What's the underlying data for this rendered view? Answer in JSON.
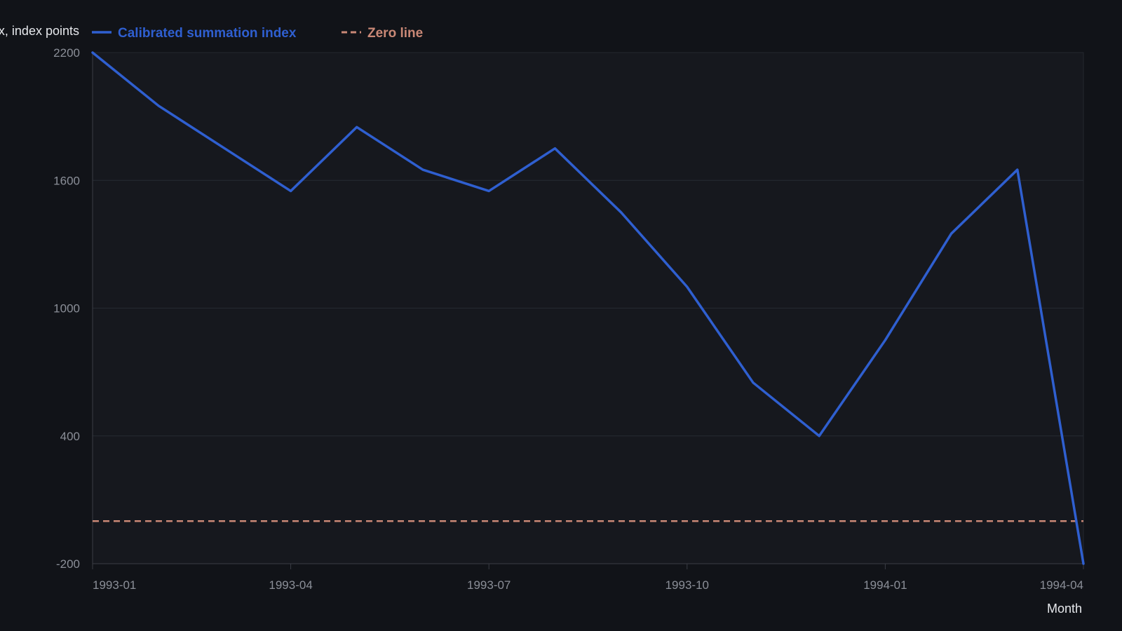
{
  "chart_data": {
    "type": "line",
    "xlabel": "Month",
    "ylabel": "Index, index points",
    "ylim": [
      -200,
      2200
    ],
    "yticks": [
      -200,
      400,
      1000,
      1600,
      2200
    ],
    "x": [
      "1993-01",
      "1993-02",
      "1993-03",
      "1993-04",
      "1993-05",
      "1993-06",
      "1993-07",
      "1993-08",
      "1993-09",
      "1993-10",
      "1993-11",
      "1993-12",
      "1994-01",
      "1994-02",
      "1994-03",
      "1994-04"
    ],
    "xticks": [
      "1993-01",
      "1993-04",
      "1993-07",
      "1993-10",
      "1994-01",
      "1994-04"
    ],
    "grid": true,
    "legend_position": "top-left",
    "series": [
      {
        "name": "Calibrated summation index",
        "color": "#2f5fd0",
        "style": "solid",
        "values": [
          2200,
          1950,
          1750,
          1550,
          1850,
          1650,
          1550,
          1750,
          1450,
          1100,
          650,
          400,
          850,
          1350,
          1650,
          -200
        ]
      },
      {
        "name": "Zero line",
        "color": "#c98876",
        "style": "dashed",
        "values": [
          0,
          0,
          0,
          0,
          0,
          0,
          0,
          0,
          0,
          0,
          0,
          0,
          0,
          0,
          0,
          0
        ]
      }
    ]
  }
}
